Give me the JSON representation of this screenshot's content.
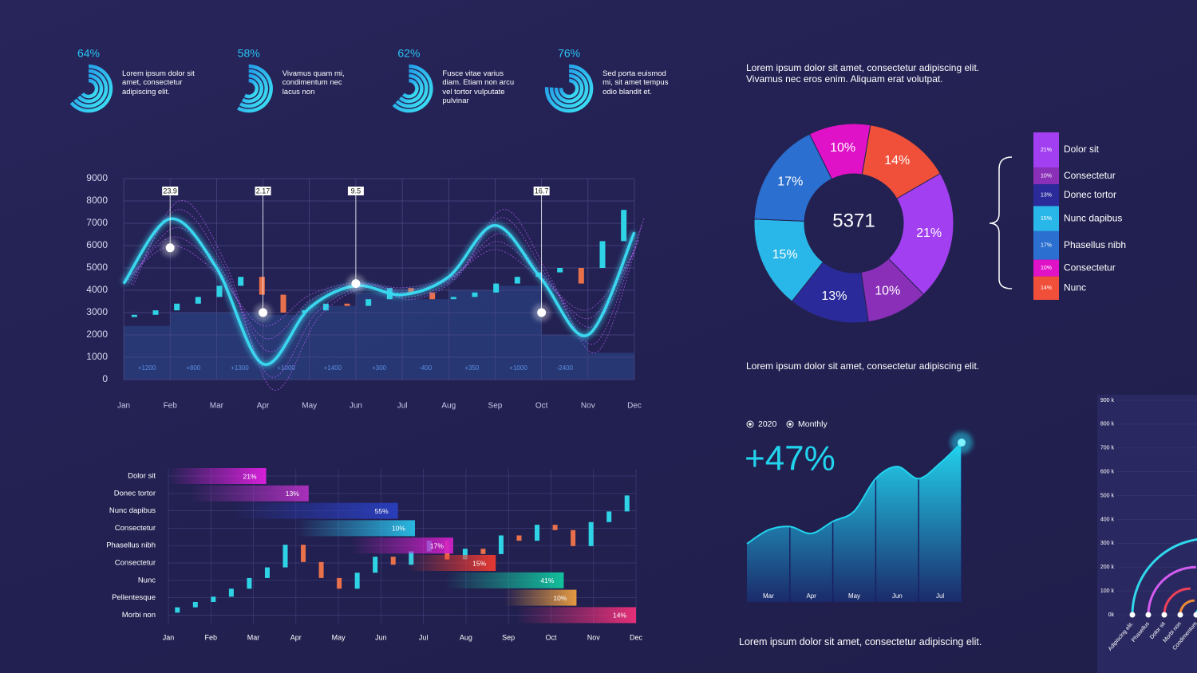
{
  "chart_data": [
    {
      "type": "radial-progress",
      "values": [
        64,
        58,
        62,
        76
      ],
      "value_labels": [
        "64%",
        "58%",
        "62%",
        "76%"
      ],
      "captions": [
        "Lorem ipsum dolor sit amet, consectetur adipiscing elit.",
        "Vivamus quam mi, condimentum nec lacus non",
        "Fusce vitae varius diam.  Etiam non arcu vel tortor vulputate pulvinar",
        "Sed porta euismod mi, sit amet tempus odio blandit et."
      ],
      "color": "#29c5f6",
      "ylim": [
        0,
        100
      ]
    },
    {
      "type": "candlestick-wave",
      "categories": [
        "Jan",
        "Feb",
        "Mar",
        "Apr",
        "May",
        "Jun",
        "Jul",
        "Aug",
        "Sep",
        "Oct",
        "Nov",
        "Dec"
      ],
      "ylim": [
        0,
        9000
      ],
      "yticks": [
        0,
        1000,
        2000,
        3000,
        4000,
        5000,
        6000,
        7000,
        8000,
        9000
      ],
      "grid": true,
      "open": [
        2800,
        2900,
        3100,
        3400,
        3700,
        4200,
        4600,
        3800,
        3000,
        3100,
        3400,
        3300,
        3600,
        4100,
        3900,
        3600,
        3700,
        3900,
        4300,
        4600,
        4800,
        5000,
        5000,
        6200
      ],
      "close": [
        2900,
        3100,
        3400,
        3700,
        4200,
        4600,
        3800,
        3000,
        3100,
        3400,
        3300,
        3600,
        4100,
        3900,
        3600,
        3700,
        3900,
        4300,
        4600,
        4800,
        5000,
        4300,
        6200,
        7600
      ],
      "rise_color": "#2fd3e6",
      "fall_color": "#e8704a",
      "wave": {
        "values": [
          4300,
          7200,
          5000,
          700,
          3200,
          4200,
          3800,
          4600,
          6900,
          4500,
          2000,
          6600
        ],
        "color": "#3ad7f0"
      },
      "area": {
        "values": [
          2400,
          3000,
          3000,
          2900,
          3300,
          3900,
          3600,
          4000,
          4200,
          2000,
          1200
        ],
        "color": "#2b4a8f"
      },
      "changes": [
        1200,
        800,
        1300,
        1000,
        1400,
        300,
        -400,
        350,
        1000,
        -2400
      ],
      "change_labels": [
        "+1200",
        "+800",
        "+1300",
        "+1000",
        "+1400",
        "+300",
        "-400",
        "+350",
        "+1000",
        "-2400"
      ],
      "markers": [
        {
          "x": "Feb",
          "value": 23.9,
          "y": 5900
        },
        {
          "x": "Apr",
          "value": 2.17,
          "y": 3000
        },
        {
          "x": "Jun",
          "value": 9.5,
          "y": 4300
        },
        {
          "x": "Oct",
          "value": 16.7,
          "y": 3000
        }
      ]
    },
    {
      "type": "donut",
      "title": "Lorem ipsum dolor sit amet, consectetur adipiscing elit. Vivamus nec eros enim. Aliquam erat volutpat.",
      "caption": "Lorem ipsum dolor sit amet, consectetur adipiscing elit.",
      "center_label": 5371,
      "categories": [
        "Dolor sit",
        "Consectetur",
        "Donec tortor",
        "Nunc dapibus",
        "Phasellus nibh",
        "Consectetur",
        "Nunc"
      ],
      "values": [
        21,
        10,
        13,
        15,
        17,
        10,
        14
      ],
      "value_labels": [
        "21%",
        "10%",
        "13%",
        "15%",
        "17%",
        "10%",
        "14%"
      ],
      "colors": [
        "#a23ff0",
        "#8a2fb8",
        "#2a2a9a",
        "#29b6e8",
        "#2b6fd0",
        "#e012c8",
        "#f0503a"
      ]
    },
    {
      "type": "gantt-candlestick",
      "categories": [
        "Dolor sit",
        "Donec tortor",
        "Nunc dapibus",
        "Consectetur",
        "Phasellus nibh",
        "Consectetur",
        "Nunc",
        "Pellentesque",
        "Morbi non"
      ],
      "starts": [
        0,
        0.5,
        1.5,
        3.0,
        4.3,
        5.6,
        6.5,
        7.9,
        8.2
      ],
      "ends": [
        2.3,
        3.3,
        5.4,
        5.8,
        6.7,
        7.7,
        9.3,
        9.6,
        11
      ],
      "values": [
        21,
        13,
        55,
        10,
        17,
        15,
        41,
        10,
        14
      ],
      "value_labels": [
        "21%",
        "13%",
        "55%",
        "10%",
        "17%",
        "15%",
        "41%",
        "10%",
        "14%"
      ],
      "colors": [
        "#e020e0",
        "#b030c0",
        "#2a3fc0",
        "#29c0e8",
        "#d020c8",
        "#f03a30",
        "#12c8a0",
        "#f0a040",
        "#f0307a"
      ],
      "xlim": [
        0,
        11
      ],
      "xticks": [
        {
          "value": 0,
          "label": "Jan"
        },
        {
          "value": 1,
          "label": "Feb"
        },
        {
          "value": 2,
          "label": "Mar"
        },
        {
          "value": 3,
          "label": "Apr"
        },
        {
          "value": 4,
          "label": "May"
        },
        {
          "value": 5,
          "label": "Jun"
        },
        {
          "value": 6,
          "label": "Jul"
        },
        {
          "value": 7,
          "label": "Aug"
        },
        {
          "value": 8,
          "label": "Sep"
        },
        {
          "value": 9,
          "label": "Oct"
        },
        {
          "value": 10,
          "label": "Nov"
        },
        {
          "value": 11,
          "label": "Dec"
        }
      ],
      "ylim": [
        0,
        100
      ],
      "open": [
        4,
        8,
        12,
        16,
        22,
        30,
        38,
        55,
        42,
        30,
        22,
        34,
        46,
        40,
        50,
        58,
        44,
        52,
        48,
        62,
        58,
        70,
        66,
        54,
        72,
        80
      ],
      "close": [
        8,
        12,
        16,
        22,
        30,
        38,
        55,
        42,
        30,
        22,
        34,
        46,
        40,
        50,
        58,
        44,
        52,
        48,
        62,
        58,
        70,
        66,
        54,
        72,
        80,
        92
      ],
      "rise_color": "#2fd3e6",
      "fall_color": "#e8704a"
    },
    {
      "type": "area",
      "headline": "+47%",
      "legend": [
        "2020",
        "Monthly"
      ],
      "caption": "Lorem ipsum dolor sit amet, consectetur adipiscing elit.",
      "categories": [
        null,
        "Mar",
        null,
        "Apr",
        null,
        "May",
        null,
        "Jun",
        null,
        "Jul",
        null
      ],
      "values": [
        34,
        42,
        44,
        40,
        47,
        53,
        72,
        79,
        72,
        81,
        93
      ],
      "ylim": [
        0,
        100
      ],
      "color": "#22d3ee"
    },
    {
      "type": "radial-bar",
      "categories": [
        "Adipiscing elit.",
        "Phasellus",
        "Dolor sit",
        "Morbi non",
        "Condimentum"
      ],
      "values": [
        320000,
        200000,
        110000,
        60000,
        30000
      ],
      "colors": [
        "#2fd8ec",
        "#d35cf0",
        "#f0405a",
        "#f08a3a",
        "#2fd8ec"
      ],
      "ylim": [
        0,
        900000
      ],
      "yticks": [
        {
          "value": 0,
          "label": "0k"
        },
        {
          "value": 100000,
          "label": "100 k"
        },
        {
          "value": 200000,
          "label": "200 k"
        },
        {
          "value": 300000,
          "label": "300 k"
        },
        {
          "value": 400000,
          "label": "400 k"
        },
        {
          "value": 500000,
          "label": "500 k"
        },
        {
          "value": 600000,
          "label": "600 k"
        },
        {
          "value": 700000,
          "label": "700 k"
        },
        {
          "value": 800000,
          "label": "800 k"
        },
        {
          "value": 900000,
          "label": "900 k"
        }
      ]
    }
  ]
}
